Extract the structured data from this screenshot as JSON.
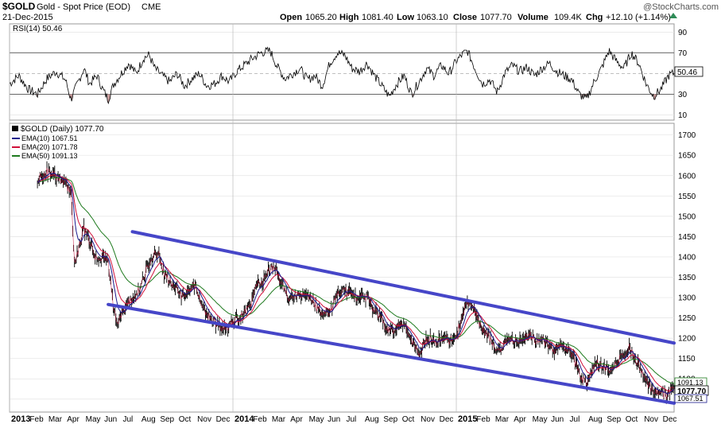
{
  "header": {
    "symbol": "$GOLD",
    "name": "Gold - Spot Price (EOD)",
    "exchange": "CME",
    "date": "21-Dec-2015",
    "watermark": "@StockCharts.com",
    "open_label": "Open",
    "open_value": "1065.20",
    "high_label": "High",
    "high_value": "1081.40",
    "low_label": "Low",
    "low_value": "1063.10",
    "close_label": "Close",
    "close_value": "1077.70",
    "volume_label": "Volume",
    "volume_value": "109.4K",
    "chg_label": "Chg",
    "chg_value": "+12.10 (+1.14%)"
  },
  "rsi": {
    "label": "RSI(14) 50.46",
    "current_tag": "50.46",
    "ticks": [
      90,
      70,
      50,
      30,
      10
    ],
    "levels": [
      70,
      30
    ],
    "ylim": [
      5,
      98
    ],
    "color": "#000000",
    "oversold_fill": "#c89a9a"
  },
  "price_legend": {
    "main": "$GOLD (Daily) 1077.70",
    "ema10": "EMA(10) 1067.51",
    "ema20": "EMA(20) 1071.78",
    "ema50": "EMA(50) 1091.13"
  },
  "tags": {
    "ema50": "1091.13",
    "close": "1077.70",
    "ema10": "1067.51"
  },
  "colors": {
    "ema10": "#1a1a8c",
    "ema20": "#d0103a",
    "ema50": "#1e7a1e",
    "channel": "#4646c8",
    "bars": "#000000"
  },
  "chart_data": {
    "type": "line",
    "title": "$GOLD (Daily) 1077.70",
    "ylim": [
      1030,
      1715
    ],
    "price_ticks": [
      1700,
      1650,
      1600,
      1550,
      1500,
      1450,
      1400,
      1350,
      1300,
      1250,
      1200,
      1150,
      1100,
      1050
    ],
    "x_labels": [
      {
        "label": "2013",
        "m": 0,
        "bold": true
      },
      {
        "label": "Feb",
        "m": 1
      },
      {
        "label": "Mar",
        "m": 2
      },
      {
        "label": "Apr",
        "m": 3
      },
      {
        "label": "May",
        "m": 4
      },
      {
        "label": "Jun",
        "m": 5
      },
      {
        "label": "Jul",
        "m": 6
      },
      {
        "label": "Aug",
        "m": 7
      },
      {
        "label": "Sep",
        "m": 8
      },
      {
        "label": "Oct",
        "m": 9
      },
      {
        "label": "Nov",
        "m": 10
      },
      {
        "label": "Dec",
        "m": 11
      },
      {
        "label": "2014",
        "m": 12,
        "bold": true
      },
      {
        "label": "Feb",
        "m": 13
      },
      {
        "label": "Mar",
        "m": 14
      },
      {
        "label": "Apr",
        "m": 15
      },
      {
        "label": "May",
        "m": 16
      },
      {
        "label": "Jun",
        "m": 17
      },
      {
        "label": "Jul",
        "m": 18
      },
      {
        "label": "Aug",
        "m": 19
      },
      {
        "label": "Sep",
        "m": 20
      },
      {
        "label": "Oct",
        "m": 21
      },
      {
        "label": "Nov",
        "m": 22
      },
      {
        "label": "Dec",
        "m": 23
      },
      {
        "label": "2015",
        "m": 24,
        "bold": true
      },
      {
        "label": "Feb",
        "m": 25
      },
      {
        "label": "Mar",
        "m": 26
      },
      {
        "label": "Apr",
        "m": 27
      },
      {
        "label": "May",
        "m": 28
      },
      {
        "label": "Jun",
        "m": 29
      },
      {
        "label": "Jul",
        "m": 30
      },
      {
        "label": "Aug",
        "m": 31
      },
      {
        "label": "Sep",
        "m": 32
      },
      {
        "label": "Oct",
        "m": 33
      },
      {
        "label": "Nov",
        "m": 34
      },
      {
        "label": "Dec",
        "m": 35
      }
    ],
    "month_range": [
      0,
      35.7
    ],
    "price_series": [
      [
        1.5,
        1590
      ],
      [
        2.0,
        1610
      ],
      [
        2.5,
        1600
      ],
      [
        3.0,
        1580
      ],
      [
        3.3,
        1560
      ],
      [
        3.5,
        1380
      ],
      [
        3.7,
        1420
      ],
      [
        4.0,
        1470
      ],
      [
        4.3,
        1440
      ],
      [
        4.6,
        1400
      ],
      [
        5.0,
        1400
      ],
      [
        5.3,
        1390
      ],
      [
        5.6,
        1270
      ],
      [
        5.8,
        1230
      ],
      [
        6.0,
        1260
      ],
      [
        6.3,
        1280
      ],
      [
        6.6,
        1300
      ],
      [
        7.0,
        1320
      ],
      [
        7.3,
        1360
      ],
      [
        7.6,
        1400
      ],
      [
        8.0,
        1410
      ],
      [
        8.3,
        1360
      ],
      [
        8.6,
        1340
      ],
      [
        9.0,
        1320
      ],
      [
        9.3,
        1300
      ],
      [
        9.6,
        1320
      ],
      [
        10.0,
        1330
      ],
      [
        10.3,
        1280
      ],
      [
        10.6,
        1260
      ],
      [
        11.0,
        1240
      ],
      [
        11.3,
        1230
      ],
      [
        11.6,
        1220
      ],
      [
        12.0,
        1240
      ],
      [
        12.3,
        1250
      ],
      [
        12.6,
        1260
      ],
      [
        13.0,
        1290
      ],
      [
        13.3,
        1330
      ],
      [
        13.6,
        1340
      ],
      [
        14.0,
        1370
      ],
      [
        14.3,
        1370
      ],
      [
        14.6,
        1330
      ],
      [
        15.0,
        1300
      ],
      [
        15.3,
        1300
      ],
      [
        15.6,
        1310
      ],
      [
        16.0,
        1300
      ],
      [
        16.3,
        1290
      ],
      [
        16.6,
        1270
      ],
      [
        17.0,
        1260
      ],
      [
        17.3,
        1270
      ],
      [
        17.6,
        1310
      ],
      [
        18.0,
        1320
      ],
      [
        18.3,
        1310
      ],
      [
        18.6,
        1300
      ],
      [
        19.0,
        1310
      ],
      [
        19.3,
        1290
      ],
      [
        19.6,
        1270
      ],
      [
        20.0,
        1250
      ],
      [
        20.3,
        1220
      ],
      [
        20.6,
        1220
      ],
      [
        21.0,
        1230
      ],
      [
        21.3,
        1230
      ],
      [
        21.6,
        1190
      ],
      [
        22.0,
        1160
      ],
      [
        22.3,
        1190
      ],
      [
        22.6,
        1200
      ],
      [
        23.0,
        1190
      ],
      [
        23.3,
        1210
      ],
      [
        23.6,
        1190
      ],
      [
        24.0,
        1210
      ],
      [
        24.3,
        1250
      ],
      [
        24.6,
        1290
      ],
      [
        25.0,
        1270
      ],
      [
        25.3,
        1230
      ],
      [
        25.6,
        1210
      ],
      [
        26.0,
        1190
      ],
      [
        26.3,
        1160
      ],
      [
        26.6,
        1190
      ],
      [
        27.0,
        1200
      ],
      [
        27.3,
        1190
      ],
      [
        27.6,
        1200
      ],
      [
        28.0,
        1210
      ],
      [
        28.3,
        1190
      ],
      [
        28.6,
        1200
      ],
      [
        29.0,
        1180
      ],
      [
        29.3,
        1170
      ],
      [
        29.6,
        1180
      ],
      [
        30.0,
        1170
      ],
      [
        30.3,
        1150
      ],
      [
        30.6,
        1110
      ],
      [
        31.0,
        1090
      ],
      [
        31.3,
        1120
      ],
      [
        31.6,
        1140
      ],
      [
        32.0,
        1130
      ],
      [
        32.3,
        1120
      ],
      [
        32.6,
        1140
      ],
      [
        33.0,
        1160
      ],
      [
        33.3,
        1180
      ],
      [
        33.6,
        1150
      ],
      [
        34.0,
        1120
      ],
      [
        34.3,
        1085
      ],
      [
        34.6,
        1070
      ],
      [
        35.0,
        1065
      ],
      [
        35.3,
        1060
      ],
      [
        35.6,
        1077.7
      ]
    ],
    "channel_upper": [
      [
        6.6,
        1462
      ],
      [
        35.7,
        1188
      ]
    ],
    "channel_lower": [
      [
        5.3,
        1283
      ],
      [
        35.7,
        1040
      ]
    ],
    "rsi_series": [
      [
        0.0,
        40
      ],
      [
        0.5,
        48
      ],
      [
        1.0,
        35
      ],
      [
        1.5,
        30
      ],
      [
        2.0,
        45
      ],
      [
        2.5,
        52
      ],
      [
        3.0,
        44
      ],
      [
        3.3,
        25
      ],
      [
        3.6,
        38
      ],
      [
        4.0,
        55
      ],
      [
        4.3,
        40
      ],
      [
        4.7,
        48
      ],
      [
        5.0,
        35
      ],
      [
        5.3,
        25
      ],
      [
        5.6,
        40
      ],
      [
        6.0,
        50
      ],
      [
        6.4,
        60
      ],
      [
        6.8,
        50
      ],
      [
        7.2,
        65
      ],
      [
        7.5,
        68
      ],
      [
        7.8,
        55
      ],
      [
        8.2,
        48
      ],
      [
        8.6,
        42
      ],
      [
        9.0,
        50
      ],
      [
        9.4,
        38
      ],
      [
        9.8,
        45
      ],
      [
        10.2,
        50
      ],
      [
        10.6,
        38
      ],
      [
        11.0,
        40
      ],
      [
        11.4,
        48
      ],
      [
        11.8,
        42
      ],
      [
        12.2,
        52
      ],
      [
        12.6,
        58
      ],
      [
        13.0,
        64
      ],
      [
        13.5,
        70
      ],
      [
        14.0,
        72
      ],
      [
        14.4,
        56
      ],
      [
        14.8,
        45
      ],
      [
        15.2,
        50
      ],
      [
        15.6,
        55
      ],
      [
        16.0,
        44
      ],
      [
        16.4,
        48
      ],
      [
        16.8,
        38
      ],
      [
        17.2,
        60
      ],
      [
        17.6,
        70
      ],
      [
        18.0,
        68
      ],
      [
        18.4,
        55
      ],
      [
        18.8,
        52
      ],
      [
        19.2,
        60
      ],
      [
        19.6,
        48
      ],
      [
        20.0,
        38
      ],
      [
        20.4,
        28
      ],
      [
        20.8,
        40
      ],
      [
        21.2,
        48
      ],
      [
        21.6,
        30
      ],
      [
        22.0,
        42
      ],
      [
        22.4,
        55
      ],
      [
        22.8,
        48
      ],
      [
        23.2,
        58
      ],
      [
        23.6,
        50
      ],
      [
        24.0,
        62
      ],
      [
        24.3,
        68
      ],
      [
        24.6,
        72
      ],
      [
        25.0,
        55
      ],
      [
        25.4,
        40
      ],
      [
        25.8,
        44
      ],
      [
        26.2,
        32
      ],
      [
        26.6,
        50
      ],
      [
        27.0,
        58
      ],
      [
        27.4,
        52
      ],
      [
        27.8,
        56
      ],
      [
        28.2,
        48
      ],
      [
        28.6,
        55
      ],
      [
        29.0,
        60
      ],
      [
        29.4,
        52
      ],
      [
        29.8,
        48
      ],
      [
        30.2,
        44
      ],
      [
        30.6,
        30
      ],
      [
        31.0,
        25
      ],
      [
        31.4,
        42
      ],
      [
        31.8,
        55
      ],
      [
        32.2,
        72
      ],
      [
        32.6,
        62
      ],
      [
        33.0,
        55
      ],
      [
        33.4,
        70
      ],
      [
        33.8,
        60
      ],
      [
        34.2,
        40
      ],
      [
        34.6,
        28
      ],
      [
        35.0,
        35
      ],
      [
        35.4,
        48
      ],
      [
        35.7,
        50.46
      ]
    ]
  }
}
